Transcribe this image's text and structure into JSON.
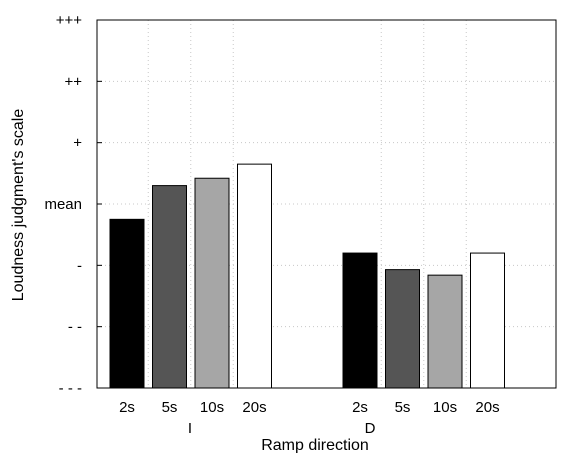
{
  "chart_data": {
    "type": "bar",
    "ylabel": "Loudness judgment's scale",
    "xlabel": "Ramp direction",
    "y_tick_labels": [
      "- - -",
      "- -",
      "-",
      "mean",
      "+",
      "++",
      "+++"
    ],
    "ylim": [
      -3,
      3
    ],
    "grid": true,
    "groups": [
      {
        "name": "I",
        "categories": [
          "2s",
          "5s",
          "10s",
          "20s"
        ],
        "values": [
          -0.25,
          0.3,
          0.42,
          0.65
        ],
        "colors": [
          "#000000",
          "#555555",
          "#a6a6a6",
          "#ffffff"
        ]
      },
      {
        "name": "D",
        "categories": [
          "2s",
          "5s",
          "10s",
          "20s"
        ],
        "values": [
          -0.8,
          -1.07,
          -1.16,
          -0.8
        ],
        "colors": [
          "#000000",
          "#555555",
          "#a6a6a6",
          "#ffffff"
        ]
      }
    ]
  }
}
